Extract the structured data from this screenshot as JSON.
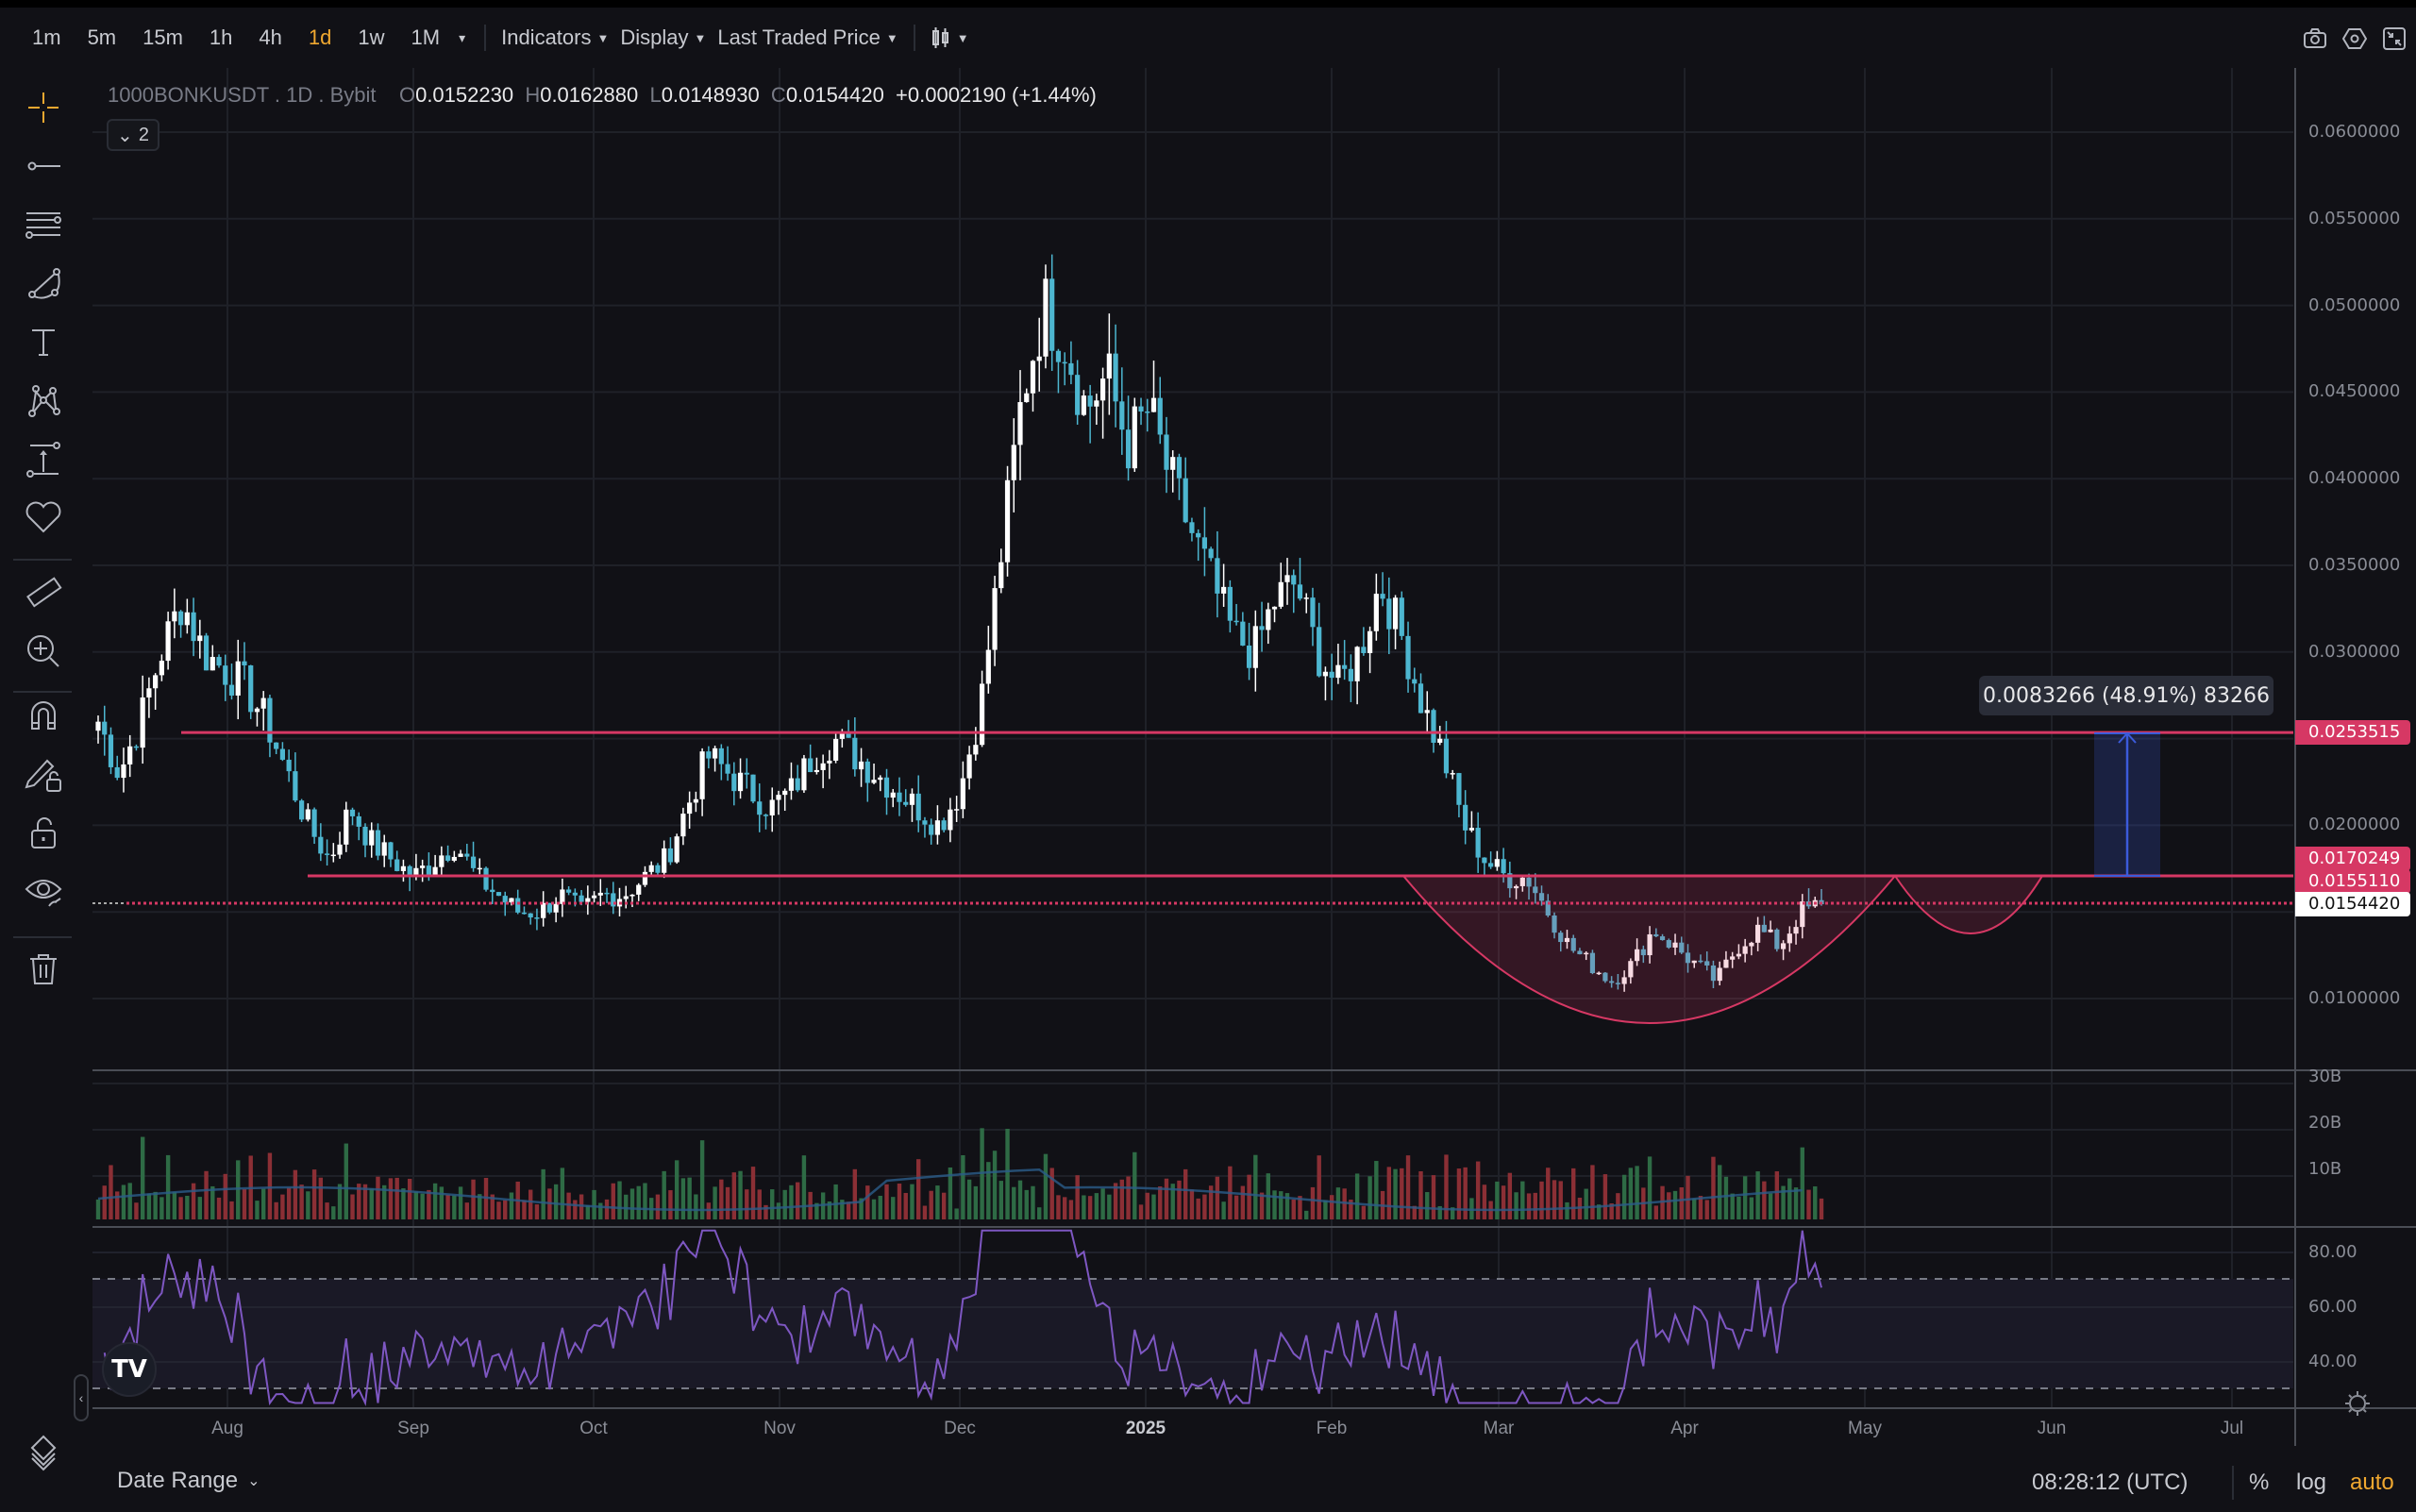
{
  "toolbar": {
    "timeframes": [
      {
        "label": "1m",
        "active": false
      },
      {
        "label": "5m",
        "active": false
      },
      {
        "label": "15m",
        "active": false
      },
      {
        "label": "1h",
        "active": false
      },
      {
        "label": "4h",
        "active": false
      },
      {
        "label": "1d",
        "active": true
      },
      {
        "label": "1w",
        "active": false
      },
      {
        "label": "1M",
        "active": false
      }
    ],
    "more_caret": "▾",
    "indicators": "Indicators",
    "display": "Display",
    "price_source": "Last Traded Price",
    "chart_type_icon": "candles-icon",
    "right_icons": [
      "camera-icon",
      "settings-icon",
      "fullscreen-exit-icon"
    ]
  },
  "legend": {
    "symbol": "1000BONKUSDT . 1D . Bybit",
    "open_label": "O",
    "open": "0.0152230",
    "high_label": "H",
    "high": "0.0162880",
    "low_label": "L",
    "low": "0.0148930",
    "close_label": "C",
    "close": "0.0154420",
    "change": "+0.0002190 (+1.44%)",
    "collapse_count": "2"
  },
  "left_tools": [
    "crosshair-icon",
    "trend-line-icon",
    "fib-lines-icon",
    "brush-icon",
    "text-icon",
    "pattern-icon",
    "measure-arrow-icon",
    "heart-icon",
    "ruler-icon",
    "zoom-in-icon",
    "magnet-icon",
    "lock-drawing-icon",
    "lock-icon",
    "eye-icon",
    "trash-icon",
    "layers-icon"
  ],
  "price_axis": {
    "labels": [
      "0.0600000",
      "0.0550000",
      "0.0500000",
      "0.0450000",
      "0.0400000",
      "0.0350000",
      "0.0300000",
      "0.0200000",
      "0.0100000"
    ],
    "tags": [
      {
        "value": "0.0253515",
        "style": "red"
      },
      {
        "value": "0.0170249",
        "style": "red"
      },
      {
        "value": "0.0155110",
        "style": "red"
      },
      {
        "value": "0.0154420",
        "style": "white"
      }
    ]
  },
  "measure_tooltip": "0.0083266 (48.91%) 83266",
  "volume_axis": [
    "30B",
    "20B",
    "10B"
  ],
  "rsi_axis": [
    "80.00",
    "60.00",
    "40.00"
  ],
  "time_axis": [
    {
      "label": "Aug",
      "bold": false
    },
    {
      "label": "Sep",
      "bold": false
    },
    {
      "label": "Oct",
      "bold": false
    },
    {
      "label": "Nov",
      "bold": false
    },
    {
      "label": "Dec",
      "bold": false
    },
    {
      "label": "2025",
      "bold": true
    },
    {
      "label": "Feb",
      "bold": false
    },
    {
      "label": "Mar",
      "bold": false
    },
    {
      "label": "Apr",
      "bold": false
    },
    {
      "label": "May",
      "bold": false
    },
    {
      "label": "Jun",
      "bold": false
    },
    {
      "label": "Jul",
      "bold": false
    }
  ],
  "bottom": {
    "date_range": "Date Range",
    "clock": "08:28:12 (UTC)",
    "percent": "%",
    "log": "log",
    "auto": "auto"
  },
  "colors": {
    "background": "#111116",
    "up_candle": "#ffffff",
    "down_candle": "#4db6d0",
    "line_red": "#d63864",
    "rsi_line": "#7e57c2",
    "volume_up": "#2e6b45",
    "volume_down": "#8b2f35",
    "volume_ma": "#2b5c8a",
    "accent": "#f0a830",
    "measure_blue": "#3b5bdb"
  },
  "chart_data": {
    "type": "candlestick",
    "title": "1000BONKUSDT . 1D . Bybit",
    "ylim": [
      0.0075,
      0.062
    ],
    "x_ticks": [
      "Aug",
      "Sep",
      "Oct",
      "Nov",
      "Dec",
      "2025",
      "Feb",
      "Mar",
      "Apr",
      "May",
      "Jun",
      "Jul"
    ],
    "close_path": [
      0.026,
      0.023,
      0.026,
      0.03,
      0.033,
      0.03,
      0.029,
      0.028,
      0.026,
      0.023,
      0.02,
      0.018,
      0.021,
      0.019,
      0.018,
      0.017,
      0.018,
      0.019,
      0.017,
      0.016,
      0.015,
      0.015,
      0.016,
      0.015,
      0.016,
      0.016,
      0.017,
      0.018,
      0.021,
      0.024,
      0.023,
      0.022,
      0.021,
      0.022,
      0.024,
      0.025,
      0.024,
      0.023,
      0.022,
      0.021,
      0.02,
      0.022,
      0.027,
      0.036,
      0.045,
      0.05,
      0.048,
      0.044,
      0.046,
      0.042,
      0.044,
      0.04,
      0.037,
      0.034,
      0.031,
      0.03,
      0.033,
      0.034,
      0.03,
      0.028,
      0.03,
      0.034,
      0.031,
      0.027,
      0.024,
      0.02,
      0.018,
      0.017,
      0.017,
      0.015,
      0.013,
      0.012,
      0.011,
      0.012,
      0.014,
      0.013,
      0.012,
      0.011,
      0.013,
      0.014,
      0.013,
      0.015,
      0.0154
    ],
    "horizontal_lines": [
      0.0253515,
      0.0170249,
      0.015511,
      0.015442
    ],
    "measure": {
      "from": 0.0170249,
      "to": 0.0253515,
      "delta": 0.0083266,
      "pct": 48.91
    },
    "volume_axis": [
      "30B",
      "20B",
      "10B"
    ],
    "rsi_levels": [
      70,
      30
    ],
    "rsi_axis": [
      80,
      60,
      40
    ],
    "annotation": "cup and handle pattern"
  }
}
